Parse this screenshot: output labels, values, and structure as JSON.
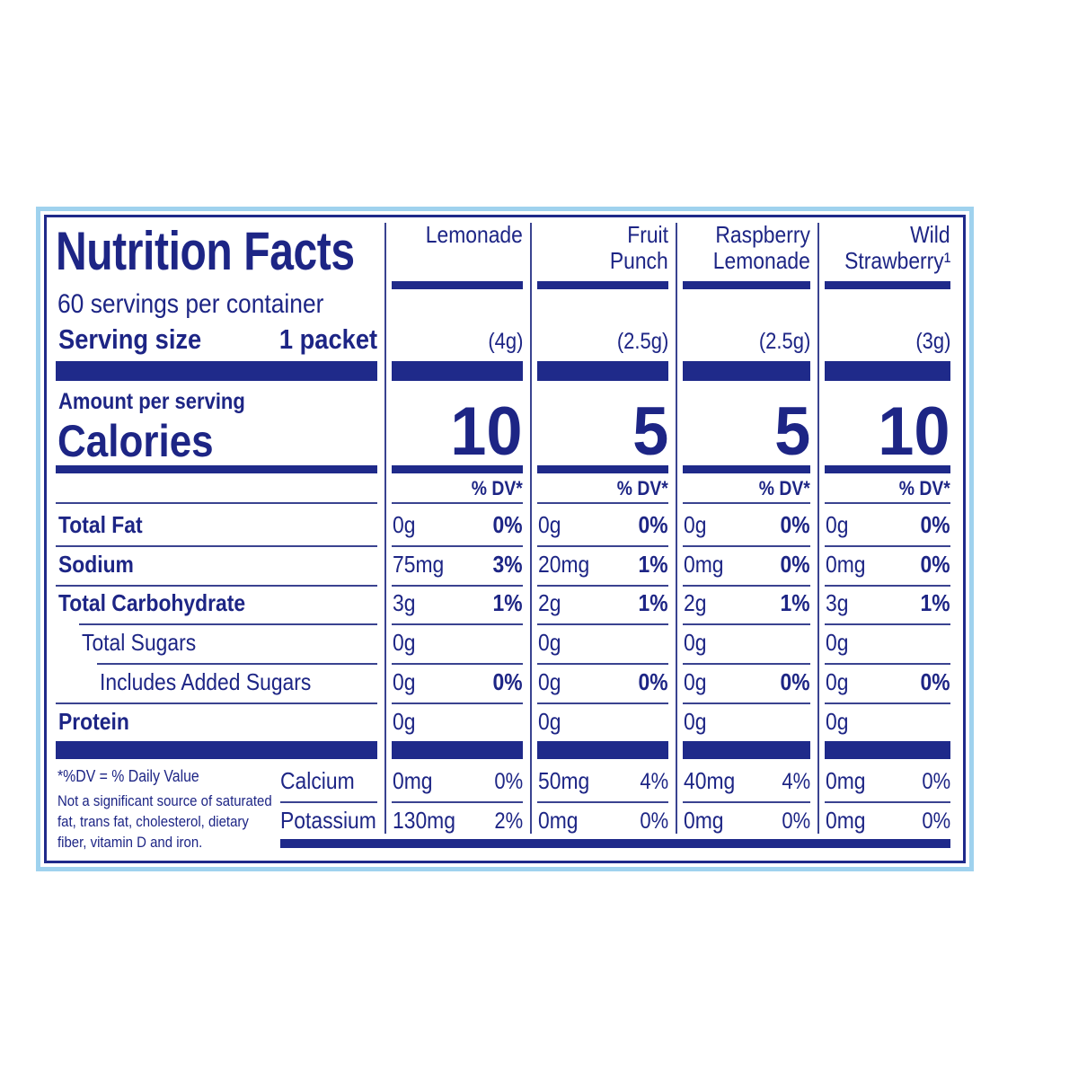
{
  "header": {
    "title": "Nutrition Facts",
    "servings": "60 servings per container",
    "serving_size_label": "Serving size",
    "serving_size": "1 packet",
    "amount_per_serving": "Amount per serving",
    "calories_label": "Calories",
    "dv_heading": "% DV*"
  },
  "nutrient_rows": [
    "Total Fat",
    "Sodium",
    "Total Carbohydrate",
    "Total Sugars",
    "Includes Added Sugars",
    "Protein"
  ],
  "mineral_rows": [
    "Calcium",
    "Potassium"
  ],
  "footnote": {
    "dv": "*%DV = % Daily Value",
    "note_lines": [
      "Not a significant source of saturated",
      "fat, trans fat, cholesterol, dietary",
      "fiber, vitamin D and iron."
    ]
  },
  "products": [
    {
      "name_lines": [
        "Lemonade"
      ],
      "serving_weight": "(4g)",
      "calories": 10,
      "nutrients": [
        [
          "0g",
          "0%"
        ],
        [
          "75mg",
          "3%"
        ],
        [
          "3g",
          "1%"
        ],
        [
          "0g"
        ],
        [
          "0g",
          "0%"
        ],
        [
          "0g"
        ]
      ],
      "minerals": [
        [
          "0mg",
          "0%"
        ],
        [
          "130mg",
          "2%"
        ]
      ]
    },
    {
      "name_lines": [
        "Fruit",
        "Punch"
      ],
      "serving_weight": "(2.5g)",
      "calories": 5,
      "nutrients": [
        [
          "0g",
          "0%"
        ],
        [
          "20mg",
          "1%"
        ],
        [
          "2g",
          "1%"
        ],
        [
          "0g"
        ],
        [
          "0g",
          "0%"
        ],
        [
          "0g"
        ]
      ],
      "minerals": [
        [
          "50mg",
          "4%"
        ],
        [
          "0mg",
          "0%"
        ]
      ]
    },
    {
      "name_lines": [
        "Raspberry",
        "Lemonade"
      ],
      "serving_weight": "(2.5g)",
      "calories": 5,
      "nutrients": [
        [
          "0g",
          "0%"
        ],
        [
          "0mg",
          "0%"
        ],
        [
          "2g",
          "1%"
        ],
        [
          "0g"
        ],
        [
          "0g",
          "0%"
        ],
        [
          "0g"
        ]
      ],
      "minerals": [
        [
          "40mg",
          "4%"
        ],
        [
          "0mg",
          "0%"
        ]
      ]
    },
    {
      "name_lines": [
        "Wild",
        "Strawberry¹"
      ],
      "serving_weight": "(3g)",
      "calories": 10,
      "nutrients": [
        [
          "0g",
          "0%"
        ],
        [
          "0mg",
          "0%"
        ],
        [
          "3g",
          "1%"
        ],
        [
          "0g"
        ],
        [
          "0g",
          "0%"
        ],
        [
          "0g"
        ]
      ],
      "minerals": [
        [
          "0mg",
          "0%"
        ],
        [
          "0mg",
          "0%"
        ]
      ]
    }
  ]
}
